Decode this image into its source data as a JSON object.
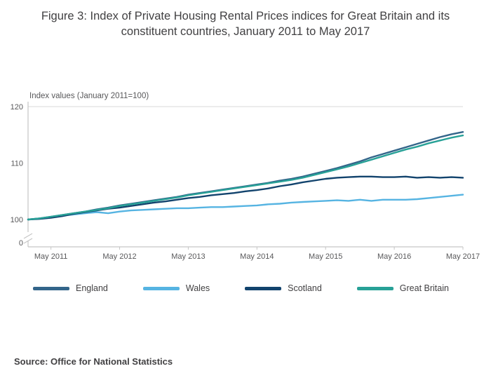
{
  "figure": {
    "title": "Figure 3: Index of Private Housing Rental Prices indices for Great Britain and its constituent countries, January 2011 to May 2017",
    "source": "Source: Office for National Statistics"
  },
  "chart_data": {
    "type": "line",
    "title": "Figure 3: Index of Private Housing Rental Prices indices for Great Britain and its constituent countries, January 2011 to May 2017",
    "y_axis_annotation": "Index values (January 2011=100)",
    "x_unit": "months since January 2011",
    "x": [
      0,
      2,
      4,
      6,
      8,
      10,
      12,
      14,
      16,
      18,
      20,
      22,
      24,
      26,
      28,
      30,
      32,
      34,
      36,
      38,
      40,
      42,
      44,
      46,
      48,
      50,
      52,
      54,
      56,
      58,
      60,
      62,
      64,
      66,
      68,
      70,
      72,
      74,
      76
    ],
    "x_ticks": [
      {
        "month": 4,
        "label": "May 2011"
      },
      {
        "month": 16,
        "label": "May 2012"
      },
      {
        "month": 28,
        "label": "May 2013"
      },
      {
        "month": 40,
        "label": "May 2014"
      },
      {
        "month": 52,
        "label": "May 2015"
      },
      {
        "month": 64,
        "label": "May 2016"
      },
      {
        "month": 76,
        "label": "May 2017"
      }
    ],
    "y_ticks": [
      0,
      100,
      110,
      120
    ],
    "y_range_shown": [
      100,
      120
    ],
    "axis_break": true,
    "grid": "top gridline only",
    "legend_position": "bottom",
    "draw_order": [
      1,
      2,
      0,
      3
    ],
    "series": [
      {
        "name": "England",
        "color": "#33658a",
        "values": [
          100,
          100.2,
          100.5,
          100.8,
          101.1,
          101.4,
          101.8,
          102.1,
          102.5,
          102.8,
          103.1,
          103.4,
          103.7,
          104.0,
          104.4,
          104.7,
          105.0,
          105.3,
          105.6,
          105.9,
          106.2,
          106.5,
          106.9,
          107.2,
          107.6,
          108.1,
          108.6,
          109.1,
          109.7,
          110.3,
          111.0,
          111.6,
          112.2,
          112.8,
          113.4,
          114.0,
          114.6,
          115.1,
          115.5
        ]
      },
      {
        "name": "Wales",
        "color": "#56b4e2",
        "values": [
          100,
          100.2,
          100.4,
          100.7,
          100.9,
          101.1,
          101.3,
          101.1,
          101.4,
          101.6,
          101.7,
          101.8,
          101.9,
          102.0,
          102.0,
          102.1,
          102.2,
          102.2,
          102.3,
          102.4,
          102.5,
          102.7,
          102.8,
          103.0,
          103.1,
          103.2,
          103.3,
          103.4,
          103.3,
          103.5,
          103.3,
          103.5,
          103.5,
          103.5,
          103.6,
          103.8,
          104.0,
          104.2,
          104.4
        ]
      },
      {
        "name": "Scotland",
        "color": "#12436d",
        "values": [
          100,
          100.1,
          100.3,
          100.6,
          101.0,
          101.3,
          101.6,
          101.9,
          102.1,
          102.4,
          102.7,
          103.0,
          103.2,
          103.5,
          103.8,
          104.0,
          104.3,
          104.5,
          104.7,
          105.0,
          105.2,
          105.5,
          105.9,
          106.2,
          106.6,
          106.9,
          107.2,
          107.4,
          107.5,
          107.6,
          107.6,
          107.5,
          107.5,
          107.6,
          107.4,
          107.5,
          107.4,
          107.5,
          107.4
        ]
      },
      {
        "name": "Great Britain",
        "color": "#28a197",
        "values": [
          100,
          100.2,
          100.5,
          100.8,
          101.1,
          101.4,
          101.7,
          102.0,
          102.4,
          102.7,
          103.0,
          103.3,
          103.6,
          103.9,
          104.3,
          104.6,
          104.9,
          105.2,
          105.5,
          105.8,
          106.1,
          106.4,
          106.7,
          107.0,
          107.4,
          107.9,
          108.4,
          108.9,
          109.4,
          110.0,
          110.6,
          111.2,
          111.8,
          112.4,
          112.9,
          113.5,
          114.0,
          114.5,
          114.9
        ]
      }
    ]
  }
}
